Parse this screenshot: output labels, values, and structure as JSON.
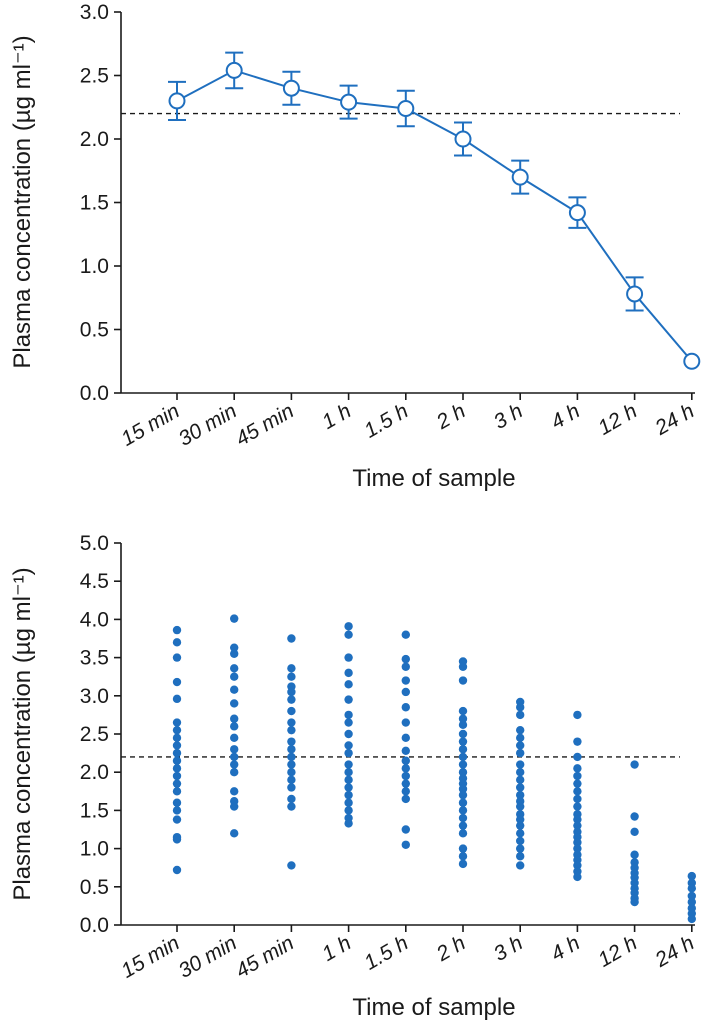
{
  "colors": {
    "series": "#1f6fbf",
    "axis": "#1a1a1a"
  },
  "chart_data": [
    {
      "type": "line",
      "xlabel": "Time of sample",
      "ylabel": "Plasma concentration (µg ml⁻¹)",
      "categories": [
        "15 min",
        "30 min",
        "45 min",
        "1 h",
        "1.5 h",
        "2 h",
        "3 h",
        "4 h",
        "12 h",
        "24 h"
      ],
      "ylim": [
        0,
        3.0
      ],
      "yticks": [
        "0.0",
        "0.5",
        "1.0",
        "1.5",
        "2.0",
        "2.5",
        "3.0"
      ],
      "reference_line": 2.2,
      "marker": "open-circle",
      "series": [
        {
          "values": [
            2.3,
            2.54,
            2.4,
            2.29,
            2.24,
            2.0,
            1.7,
            1.42,
            0.78,
            0.25
          ],
          "error": [
            0.15,
            0.14,
            0.13,
            0.13,
            0.14,
            0.13,
            0.13,
            0.12,
            0.13,
            0.0
          ]
        }
      ]
    },
    {
      "type": "scatter",
      "xlabel": "Time of sample",
      "ylabel": "Plasma concentration (µg ml⁻¹)",
      "categories": [
        "15 min",
        "30 min",
        "45 min",
        "1 h",
        "1.5 h",
        "2 h",
        "3 h",
        "4 h",
        "12 h",
        "24 h"
      ],
      "ylim": [
        0,
        5.0
      ],
      "yticks": [
        "0.0",
        "0.5",
        "1.0",
        "1.5",
        "2.0",
        "2.5",
        "3.0",
        "3.5",
        "4.0",
        "4.5",
        "5.0"
      ],
      "reference_line": 2.2,
      "points": [
        [
          3.86,
          3.7,
          3.5,
          3.18,
          2.96,
          2.65,
          2.55,
          2.45,
          2.35,
          2.25,
          2.15,
          2.05,
          1.95,
          1.85,
          1.75,
          1.6,
          1.5,
          1.38,
          1.15,
          1.12,
          0.72
        ],
        [
          4.01,
          3.63,
          3.55,
          3.36,
          3.25,
          3.08,
          2.9,
          2.7,
          2.6,
          2.45,
          2.3,
          2.2,
          2.1,
          2.0,
          1.75,
          1.62,
          1.55,
          1.2
        ],
        [
          3.75,
          3.36,
          3.25,
          3.12,
          3.05,
          2.95,
          2.8,
          2.65,
          2.55,
          2.4,
          2.3,
          2.2,
          2.1,
          2.0,
          1.9,
          1.8,
          1.65,
          1.55,
          0.78
        ],
        [
          3.91,
          3.8,
          3.5,
          3.3,
          3.15,
          2.95,
          2.75,
          2.65,
          2.5,
          2.35,
          2.25,
          2.1,
          2.0,
          1.9,
          1.8,
          1.7,
          1.6,
          1.5,
          1.4,
          1.33
        ],
        [
          3.8,
          3.48,
          3.38,
          3.2,
          3.05,
          2.85,
          2.65,
          2.45,
          2.28,
          2.15,
          2.05,
          1.95,
          1.85,
          1.75,
          1.65,
          1.25,
          1.05
        ],
        [
          3.45,
          3.38,
          3.2,
          2.8,
          2.7,
          2.62,
          2.5,
          2.4,
          2.3,
          2.2,
          2.1,
          2.0,
          1.92,
          1.85,
          1.78,
          1.7,
          1.6,
          1.5,
          1.4,
          1.3,
          1.2,
          1.0,
          0.9,
          0.8
        ],
        [
          2.92,
          2.85,
          2.75,
          2.55,
          2.45,
          2.35,
          2.25,
          2.1,
          2.0,
          1.9,
          1.8,
          1.7,
          1.62,
          1.55,
          1.45,
          1.38,
          1.3,
          1.2,
          1.1,
          1.0,
          0.9,
          0.78
        ],
        [
          2.75,
          2.4,
          2.2,
          2.05,
          1.95,
          1.85,
          1.75,
          1.65,
          1.55,
          1.45,
          1.38,
          1.3,
          1.22,
          1.15,
          1.08,
          1.0,
          0.92,
          0.85,
          0.78,
          0.7,
          0.63
        ],
        [
          2.1,
          1.42,
          1.22,
          0.92,
          0.82,
          0.75,
          0.68,
          0.62,
          0.55,
          0.48,
          0.42,
          0.35,
          0.3
        ],
        [
          0.64,
          0.55,
          0.48,
          0.38,
          0.3,
          0.22,
          0.15,
          0.08
        ]
      ]
    }
  ]
}
